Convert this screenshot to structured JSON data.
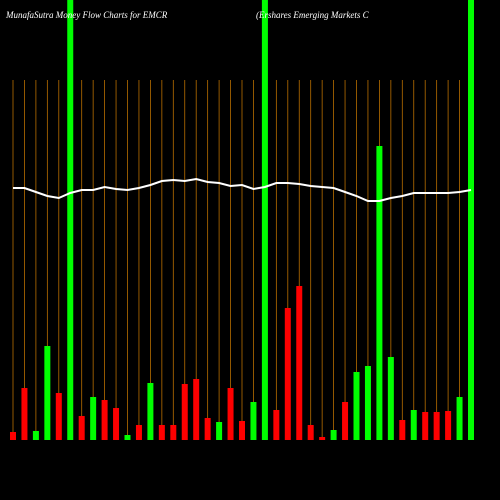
{
  "chart_data": {
    "type": "bar",
    "title": "MunafaSutra  Money Flow  Charts for EMCR",
    "subtitle": "(Ershares Emerging Markets C",
    "categories": [
      null,
      null,
      null,
      null,
      null,
      null,
      null,
      null,
      null,
      null,
      null,
      null,
      null,
      null,
      null,
      null,
      null,
      null,
      null,
      null,
      null,
      null,
      null,
      null,
      null,
      null,
      null,
      null,
      null,
      null,
      null,
      null,
      null,
      null,
      null,
      null,
      null,
      null,
      null,
      null,
      null
    ],
    "values": [
      8,
      52,
      9,
      94,
      47,
      440,
      24,
      43,
      40,
      32,
      5,
      15,
      57,
      15,
      15,
      56,
      61,
      22,
      18,
      52,
      19,
      38,
      440,
      30,
      132,
      154,
      15,
      3,
      10,
      38,
      68,
      74,
      294,
      83,
      20,
      30,
      28,
      28,
      29,
      43,
      440
    ],
    "colors": [
      "#ff0000",
      "#ff0000",
      "#00ff00",
      "#00ff00",
      "#ff0000",
      "#00ff00",
      "#ff0000",
      "#00ff00",
      "#ff0000",
      "#ff0000",
      "#00ff00",
      "#ff0000",
      "#00ff00",
      "#ff0000",
      "#ff0000",
      "#ff0000",
      "#ff0000",
      "#ff0000",
      "#00ff00",
      "#ff0000",
      "#ff0000",
      "#00ff00",
      "#00ff00",
      "#ff0000",
      "#ff0000",
      "#ff0000",
      "#ff0000",
      "#ff0000",
      "#00ff00",
      "#ff0000",
      "#00ff00",
      "#00ff00",
      "#00ff00",
      "#00ff00",
      "#ff0000",
      "#00ff00",
      "#ff0000",
      "#ff0000",
      "#ff0000",
      "#00ff00",
      "#00ff00"
    ],
    "line": {
      "color": "#ffffff",
      "values": [
        252,
        252,
        248,
        244,
        242,
        247,
        250,
        250,
        253,
        251,
        250,
        252,
        255,
        259,
        260,
        259,
        261,
        258,
        257,
        254,
        255,
        251,
        253,
        257,
        257,
        256,
        254,
        253,
        252,
        248,
        244,
        239,
        239,
        242,
        244,
        247,
        247,
        247,
        247,
        248,
        250
      ]
    },
    "ylim": [
      0,
      440
    ]
  }
}
